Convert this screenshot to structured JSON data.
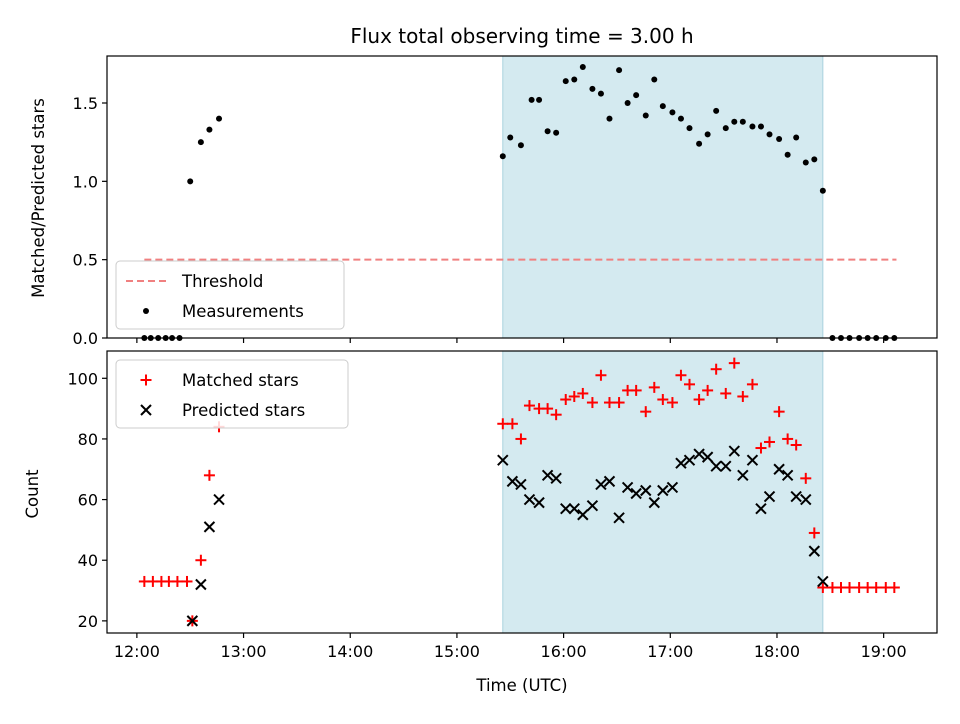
{
  "chart_data": {
    "type": "scatter",
    "title": "Flux total observing time = 3.00 h",
    "xlabel": "Time (UTC)",
    "x_unit": "hours UTC",
    "xlim": [
      11.72,
      19.5
    ],
    "xticks": [
      {
        "value": 12,
        "label": "12:00"
      },
      {
        "value": 13,
        "label": "13:00"
      },
      {
        "value": 14,
        "label": "14:00"
      },
      {
        "value": 15,
        "label": "15:00"
      },
      {
        "value": 16,
        "label": "16:00"
      },
      {
        "value": 17,
        "label": "17:00"
      },
      {
        "value": 18,
        "label": "18:00"
      },
      {
        "value": 19,
        "label": "19:00"
      }
    ],
    "shaded_span": {
      "x_start": 15.43,
      "x_end": 18.43,
      "color": "#d4eaf0"
    },
    "panels": [
      {
        "ylabel": "Matched/Predicted stars",
        "ylim": [
          0,
          1.8
        ],
        "yticks": [
          {
            "value": 0,
            "label": "0.0"
          },
          {
            "value": 0.5,
            "label": "0.5"
          },
          {
            "value": 1.0,
            "label": "1.0"
          },
          {
            "value": 1.5,
            "label": "1.5"
          }
        ],
        "legend_position": "lower-left",
        "series": [
          {
            "name": "Threshold",
            "kind": "dashed-line",
            "color": "#f08080",
            "points": [
              [
                12.07,
                0.5
              ],
              [
                19.12,
                0.5
              ]
            ]
          },
          {
            "name": "Measurements",
            "kind": "dot",
            "color": "#000000",
            "points": [
              [
                12.07,
                0
              ],
              [
                12.13,
                0
              ],
              [
                12.2,
                0
              ],
              [
                12.27,
                0
              ],
              [
                12.33,
                0
              ],
              [
                12.4,
                0
              ],
              [
                12.5,
                1.0
              ],
              [
                12.6,
                1.25
              ],
              [
                12.68,
                1.33
              ],
              [
                12.77,
                1.4
              ],
              [
                15.43,
                1.16
              ],
              [
                15.5,
                1.28
              ],
              [
                15.6,
                1.23
              ],
              [
                15.7,
                1.52
              ],
              [
                15.77,
                1.52
              ],
              [
                15.85,
                1.32
              ],
              [
                15.93,
                1.31
              ],
              [
                16.02,
                1.64
              ],
              [
                16.1,
                1.65
              ],
              [
                16.18,
                1.73
              ],
              [
                16.27,
                1.59
              ],
              [
                16.35,
                1.56
              ],
              [
                16.43,
                1.4
              ],
              [
                16.52,
                1.71
              ],
              [
                16.6,
                1.5
              ],
              [
                16.68,
                1.55
              ],
              [
                16.77,
                1.42
              ],
              [
                16.85,
                1.65
              ],
              [
                16.93,
                1.48
              ],
              [
                17.02,
                1.44
              ],
              [
                17.1,
                1.4
              ],
              [
                17.18,
                1.34
              ],
              [
                17.27,
                1.24
              ],
              [
                17.35,
                1.3
              ],
              [
                17.43,
                1.45
              ],
              [
                17.52,
                1.34
              ],
              [
                17.6,
                1.38
              ],
              [
                17.68,
                1.38
              ],
              [
                17.77,
                1.35
              ],
              [
                17.85,
                1.35
              ],
              [
                17.93,
                1.3
              ],
              [
                18.02,
                1.27
              ],
              [
                18.1,
                1.17
              ],
              [
                18.18,
                1.28
              ],
              [
                18.27,
                1.12
              ],
              [
                18.35,
                1.14
              ],
              [
                18.43,
                0.94
              ],
              [
                18.52,
                0
              ],
              [
                18.6,
                0
              ],
              [
                18.68,
                0
              ],
              [
                18.77,
                0
              ],
              [
                18.85,
                0
              ],
              [
                18.93,
                0
              ],
              [
                19.02,
                0
              ],
              [
                19.1,
                0
              ]
            ]
          }
        ]
      },
      {
        "ylabel": "Count",
        "ylim": [
          16,
          109
        ],
        "yticks": [
          {
            "value": 20,
            "label": "20"
          },
          {
            "value": 40,
            "label": "40"
          },
          {
            "value": 60,
            "label": "60"
          },
          {
            "value": 80,
            "label": "80"
          },
          {
            "value": 100,
            "label": "100"
          }
        ],
        "legend_position": "upper-left",
        "series": [
          {
            "name": "Matched stars",
            "kind": "plus",
            "color": "#ff0000",
            "points": [
              [
                12.07,
                33
              ],
              [
                12.15,
                33
              ],
              [
                12.23,
                33
              ],
              [
                12.3,
                33
              ],
              [
                12.38,
                33
              ],
              [
                12.47,
                33
              ],
              [
                12.52,
                20
              ],
              [
                12.6,
                40
              ],
              [
                12.68,
                68
              ],
              [
                12.77,
                84
              ],
              [
                15.43,
                85
              ],
              [
                15.52,
                85
              ],
              [
                15.6,
                80
              ],
              [
                15.68,
                91
              ],
              [
                15.77,
                90
              ],
              [
                15.85,
                90
              ],
              [
                15.93,
                88
              ],
              [
                16.02,
                93
              ],
              [
                16.1,
                94
              ],
              [
                16.18,
                95
              ],
              [
                16.27,
                92
              ],
              [
                16.35,
                101
              ],
              [
                16.43,
                92
              ],
              [
                16.52,
                92
              ],
              [
                16.6,
                96
              ],
              [
                16.68,
                96
              ],
              [
                16.77,
                89
              ],
              [
                16.85,
                97
              ],
              [
                16.93,
                93
              ],
              [
                17.02,
                92
              ],
              [
                17.1,
                101
              ],
              [
                17.18,
                98
              ],
              [
                17.27,
                93
              ],
              [
                17.35,
                96
              ],
              [
                17.43,
                103
              ],
              [
                17.52,
                95
              ],
              [
                17.6,
                105
              ],
              [
                17.68,
                94
              ],
              [
                17.77,
                98
              ],
              [
                17.85,
                77
              ],
              [
                17.93,
                79
              ],
              [
                18.02,
                89
              ],
              [
                18.1,
                80
              ],
              [
                18.18,
                78
              ],
              [
                18.27,
                67
              ],
              [
                18.35,
                49
              ],
              [
                18.43,
                31
              ],
              [
                18.52,
                31
              ],
              [
                18.6,
                31
              ],
              [
                18.68,
                31
              ],
              [
                18.77,
                31
              ],
              [
                18.85,
                31
              ],
              [
                18.93,
                31
              ],
              [
                19.02,
                31
              ],
              [
                19.1,
                31
              ]
            ]
          },
          {
            "name": "Predicted stars",
            "kind": "x",
            "color": "#000000",
            "points": [
              [
                12.52,
                20
              ],
              [
                12.6,
                32
              ],
              [
                12.68,
                51
              ],
              [
                12.77,
                60
              ],
              [
                15.43,
                73
              ],
              [
                15.52,
                66
              ],
              [
                15.6,
                65
              ],
              [
                15.68,
                60
              ],
              [
                15.77,
                59
              ],
              [
                15.85,
                68
              ],
              [
                15.93,
                67
              ],
              [
                16.02,
                57
              ],
              [
                16.1,
                57
              ],
              [
                16.18,
                55
              ],
              [
                16.27,
                58
              ],
              [
                16.35,
                65
              ],
              [
                16.43,
                66
              ],
              [
                16.52,
                54
              ],
              [
                16.6,
                64
              ],
              [
                16.68,
                62
              ],
              [
                16.77,
                63
              ],
              [
                16.85,
                59
              ],
              [
                16.93,
                63
              ],
              [
                17.02,
                64
              ],
              [
                17.1,
                72
              ],
              [
                17.18,
                73
              ],
              [
                17.27,
                75
              ],
              [
                17.35,
                74
              ],
              [
                17.43,
                71
              ],
              [
                17.52,
                71
              ],
              [
                17.6,
                76
              ],
              [
                17.68,
                68
              ],
              [
                17.77,
                73
              ],
              [
                17.85,
                57
              ],
              [
                17.93,
                61
              ],
              [
                18.02,
                70
              ],
              [
                18.1,
                68
              ],
              [
                18.18,
                61
              ],
              [
                18.27,
                60
              ],
              [
                18.35,
                43
              ],
              [
                18.43,
                33
              ]
            ]
          }
        ]
      }
    ]
  }
}
